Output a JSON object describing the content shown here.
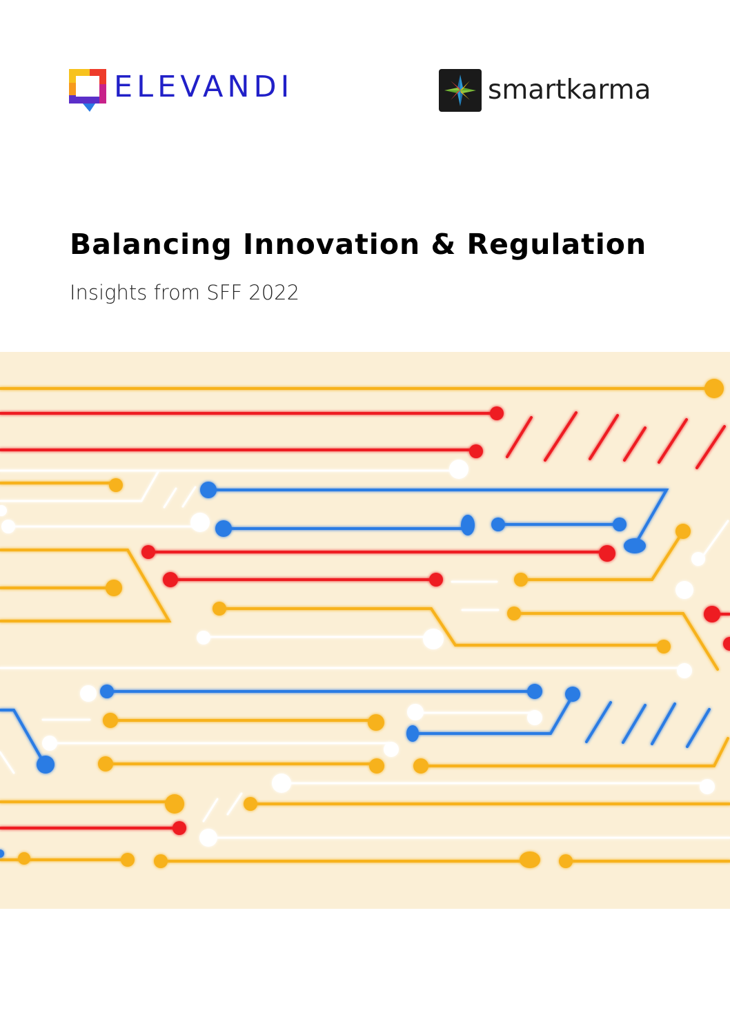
{
  "brand": {
    "elevandi_name": "ELEVANDI",
    "smartkarma_name": "smartkarma",
    "elevandi_color": "#2120c8"
  },
  "cover": {
    "title": "Balancing Innovation & Regulation",
    "subtitle": "Insights from SFF 2022"
  },
  "artwork": {
    "background": "#fbefd6",
    "colors": {
      "yellow": "#f7b21e",
      "red": "#ee1b24",
      "blue": "#2a7be4",
      "white": "#ffffff"
    }
  }
}
